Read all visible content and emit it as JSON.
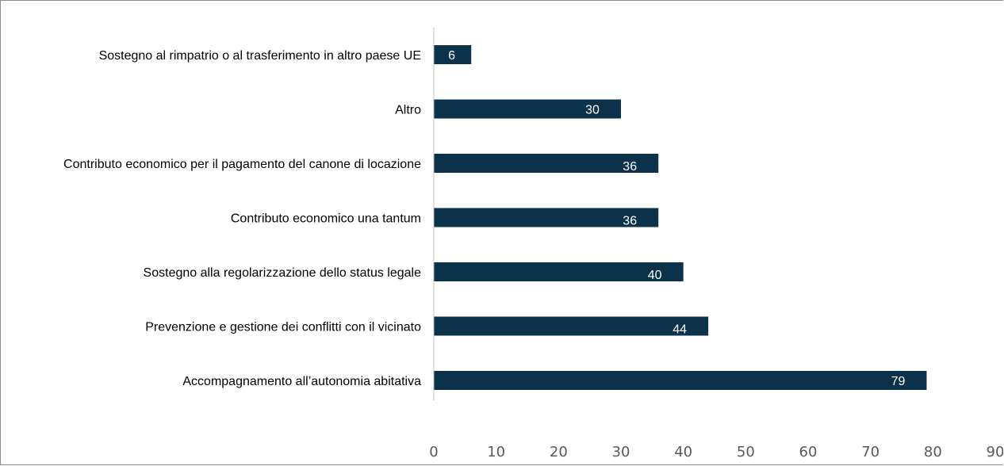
{
  "chart_data": {
    "type": "bar",
    "orientation": "horizontal",
    "categories": [
      "Sostegno al rimpatrio o al trasferimento in altro paese UE",
      "Altro",
      "Contributo economico per il pagamento del canone di locazione",
      "Contributo economico una tantum",
      "Sostegno alla regolarizzazione dello status legale",
      "Prevenzione e gestione dei conflitti con il vicinato",
      "Accompagnamento all’autonomia abitativa"
    ],
    "values": [
      6,
      30,
      36,
      36,
      40,
      44,
      79
    ],
    "xlim": [
      0,
      90
    ],
    "xticks": [
      "0",
      "10",
      "20",
      "30",
      "40",
      "50",
      "60",
      "70",
      "80",
      "90"
    ],
    "data_labels": [
      "6",
      "30",
      "36",
      "36",
      "40",
      "44",
      "79"
    ],
    "title": "",
    "xlabel": "",
    "ylabel": "",
    "grid": false,
    "colors": {
      "bar": "#0b324a",
      "axis": "#bfbfbf",
      "tick_text": "#595959",
      "category_text": "#000000",
      "data_label_text": "#ffffff"
    }
  }
}
